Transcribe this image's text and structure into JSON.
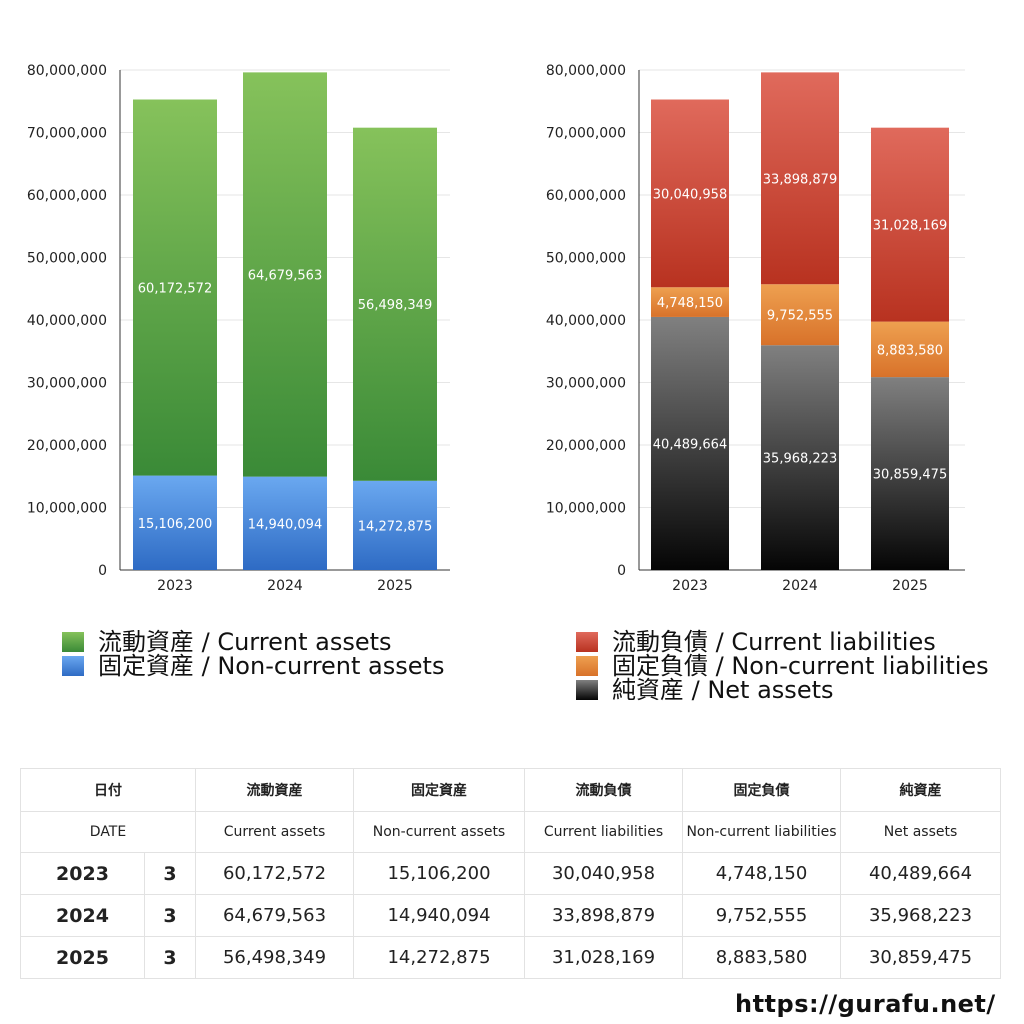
{
  "chart_data": [
    {
      "type": "bar",
      "stacked": true,
      "categories": [
        "2023",
        "2024",
        "2025"
      ],
      "ylim": [
        0,
        80000000
      ],
      "yticks": [
        "0",
        "10,000,000",
        "20,000,000",
        "30,000,000",
        "40,000,000",
        "50,000,000",
        "60,000,000",
        "70,000,000",
        "80,000,000"
      ],
      "grid": true,
      "series": [
        {
          "name": "固定資産 / Non-current assets",
          "values": [
            15106200,
            14940094,
            14272875
          ],
          "labels": [
            "15,106,200",
            "14,940,094",
            "14,272,875"
          ],
          "color_top": "#6aa8f0",
          "color_bottom": "#2e6bc4"
        },
        {
          "name": "流動資産 / Current assets",
          "values": [
            60172572,
            64679563,
            56498349
          ],
          "labels": [
            "60,172,572",
            "64,679,563",
            "56,498,349"
          ],
          "color_top": "#86c25b",
          "color_bottom": "#3a8a37"
        }
      ]
    },
    {
      "type": "bar",
      "stacked": true,
      "categories": [
        "2023",
        "2024",
        "2025"
      ],
      "ylim": [
        0,
        80000000
      ],
      "yticks": [
        "0",
        "10,000,000",
        "20,000,000",
        "30,000,000",
        "40,000,000",
        "50,000,000",
        "60,000,000",
        "70,000,000",
        "80,000,000"
      ],
      "grid": true,
      "series": [
        {
          "name": "純資産 / Net assets",
          "values": [
            40489664,
            35968223,
            30859475
          ],
          "labels": [
            "40,489,664",
            "35,968,223",
            "30,859,475"
          ],
          "color_top": "#808080",
          "color_bottom": "#050505"
        },
        {
          "name": "固定負債 / Non-current liabilities",
          "values": [
            4748150,
            9752555,
            8883580
          ],
          "labels": [
            "4,748,150",
            "9,752,555",
            "8,883,580"
          ],
          "color_top": "#eea050",
          "color_bottom": "#d8722a"
        },
        {
          "name": "流動負債 / Current liabilities",
          "values": [
            30040958,
            33898879,
            31028169
          ],
          "labels": [
            "30,040,958",
            "33,898,879",
            "31,028,169"
          ],
          "color_top": "#e06a5c",
          "color_bottom": "#b83220"
        }
      ]
    }
  ],
  "legend_left": [
    {
      "label": "流動資産 / Current assets",
      "color_top": "#86c25b",
      "color_bottom": "#3a8a37"
    },
    {
      "label": "固定資産 / Non-current assets",
      "color_top": "#6aa8f0",
      "color_bottom": "#2e6bc4"
    }
  ],
  "legend_right": [
    {
      "label": "流動負債 / Current liabilities",
      "color_top": "#e06a5c",
      "color_bottom": "#b83220"
    },
    {
      "label": "固定負債 / Non-current liabilities",
      "color_top": "#eea050",
      "color_bottom": "#d8722a"
    },
    {
      "label": "純資産 / Net assets",
      "color_top": "#808080",
      "color_bottom": "#050505"
    }
  ],
  "table": {
    "header_jp": {
      "date": "日付",
      "current_assets": "流動資産",
      "noncurrent_assets": "固定資産",
      "current_liabilities": "流動負債",
      "noncurrent_liabilities": "固定負債",
      "net_assets": "純資産"
    },
    "header_en": {
      "date": "DATE",
      "current_assets": "Current assets",
      "noncurrent_assets": "Non-current assets",
      "current_liabilities": "Current liabilities",
      "noncurrent_liabilities": "Non-current liabilities",
      "net_assets": "Net assets"
    },
    "rows": [
      {
        "year": "2023",
        "month": "3",
        "current_assets": "60,172,572",
        "noncurrent_assets": "15,106,200",
        "current_liabilities": "30,040,958",
        "noncurrent_liabilities": "4,748,150",
        "net_assets": "40,489,664"
      },
      {
        "year": "2024",
        "month": "3",
        "current_assets": "64,679,563",
        "noncurrent_assets": "14,940,094",
        "current_liabilities": "33,898,879",
        "noncurrent_liabilities": "9,752,555",
        "net_assets": "35,968,223"
      },
      {
        "year": "2025",
        "month": "3",
        "current_assets": "56,498,349",
        "noncurrent_assets": "14,272,875",
        "current_liabilities": "31,028,169",
        "noncurrent_liabilities": "8,883,580",
        "net_assets": "30,859,475"
      }
    ]
  },
  "footer": {
    "url": "https://gurafu.net/"
  }
}
